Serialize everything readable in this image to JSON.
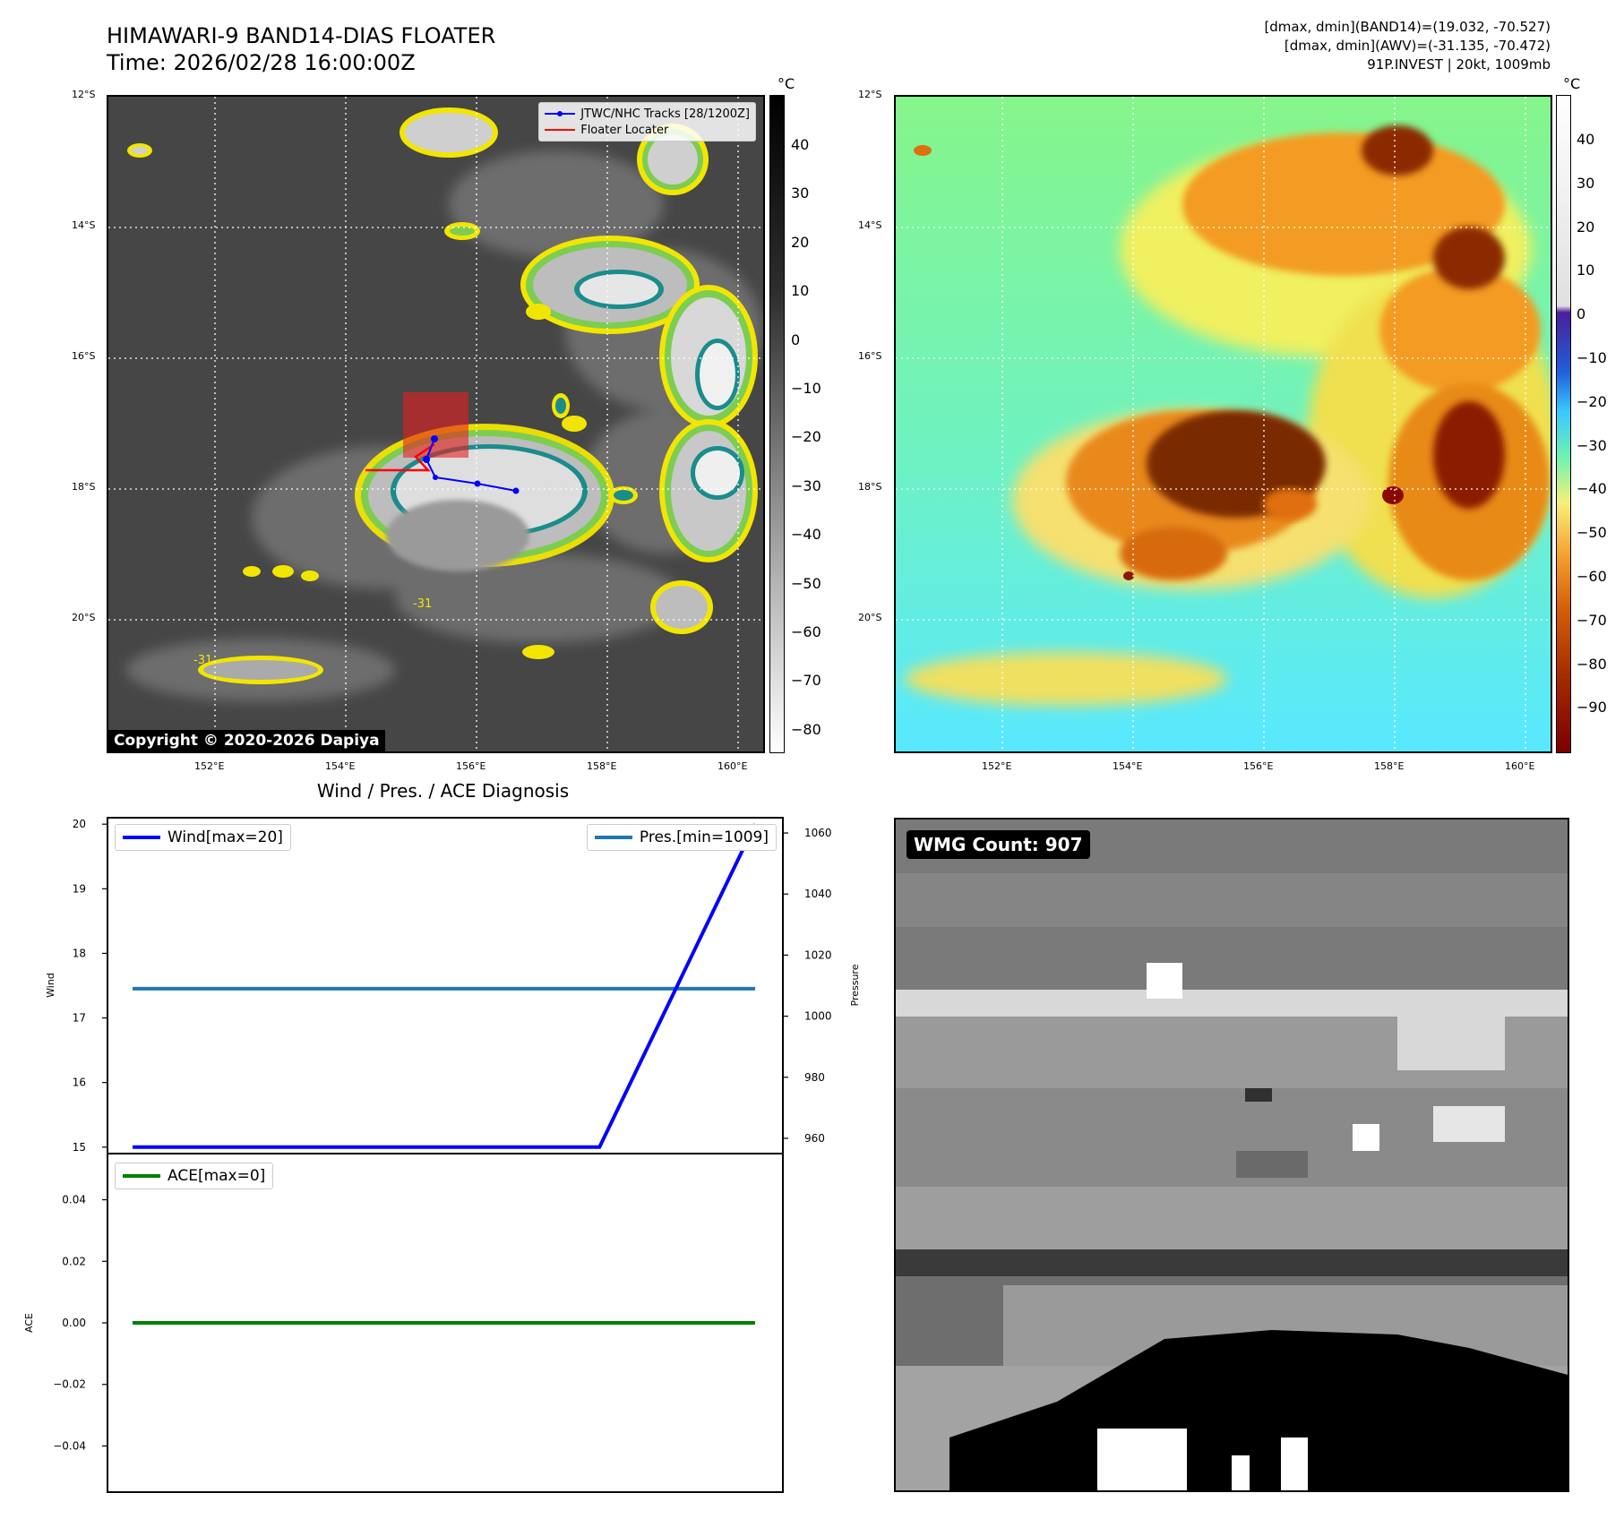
{
  "header": {
    "title_line1": "HIMAWARI-9 BAND14-DIAS FLOATER",
    "title_line2": "Time: 2026/02/28 16:00:00Z",
    "info_line1": "[dmax, dmin](BAND14)=(19.032, -70.527)",
    "info_line2": "[dmax, dmin](AWV)=(-31.135, -70.472)",
    "info_line3": "91P.INVEST | 20kt, 1009mb"
  },
  "map": {
    "lat_labels": [
      "12°S",
      "14°S",
      "16°S",
      "18°S",
      "20°S"
    ],
    "lon_labels": [
      "152°E",
      "154°E",
      "156°E",
      "158°E",
      "160°E"
    ],
    "copyright": "Copyright © 2020-2026 Dapiya",
    "legend_track": "JTWC/NHC Tracks [28/1200Z]",
    "legend_floater": "Floater Locater",
    "contour_label": "-31",
    "colors": {
      "track": "#0000ff",
      "floater": "#ff0000",
      "contour_yellow": "#f2e600",
      "contour_green": "#7ccd52",
      "contour_teal": "#1a8c8c"
    }
  },
  "colorbar_band14": {
    "unit": "°C",
    "ticks": [
      "40",
      "30",
      "20",
      "10",
      "0",
      "−10",
      "−20",
      "−30",
      "−40",
      "−50",
      "−60",
      "−70",
      "−80"
    ]
  },
  "colorbar_awv": {
    "unit": "°C",
    "ticks": [
      "40",
      "30",
      "20",
      "10",
      "0",
      "−10",
      "−20",
      "−30",
      "−40",
      "−50",
      "−60",
      "−70",
      "−80",
      "−90"
    ]
  },
  "diagnosis": {
    "title": "Wind / Pres. / ACE Diagnosis",
    "wind_axis_label": "Wind",
    "pressure_axis_label": "Pressure",
    "ace_axis_label": "ACE",
    "wind_ticks": [
      "20",
      "19",
      "18",
      "17",
      "16",
      "15"
    ],
    "pressure_ticks": [
      "1060",
      "1040",
      "1020",
      "1000",
      "980",
      "960"
    ],
    "ace_ticks": [
      "0.04",
      "0.02",
      "0.00",
      "−0.02",
      "−0.04"
    ],
    "legend_wind": "Wind[max=20]",
    "legend_pres": "Pres.[min=1009]",
    "legend_ace": "ACE[max=0]",
    "colors": {
      "wind": "#0000ff",
      "pressure": "#1f77b4",
      "ace": "#008000"
    }
  },
  "wmg": {
    "badge": "WMG Count: 907"
  },
  "chart_data": [
    {
      "type": "line",
      "title": "Wind / Pres. / ACE Diagnosis",
      "x": [
        0,
        1,
        2,
        3,
        4
      ],
      "series": [
        {
          "name": "Wind[max=20]",
          "axis": "Wind",
          "values": [
            15,
            15,
            15,
            15,
            20
          ],
          "ylim": [
            14.9,
            20.1
          ]
        },
        {
          "name": "Pres.[min=1009]",
          "axis": "Pressure",
          "values": [
            1009,
            1009,
            1009,
            1009,
            1009
          ],
          "ylim": [
            955,
            1065
          ]
        }
      ]
    },
    {
      "type": "line",
      "x": [
        0,
        1,
        2,
        3,
        4
      ],
      "series": [
        {
          "name": "ACE[max=0]",
          "axis": "ACE",
          "values": [
            0,
            0,
            0,
            0,
            0
          ],
          "ylim": [
            -0.055,
            0.055
          ]
        }
      ]
    }
  ]
}
